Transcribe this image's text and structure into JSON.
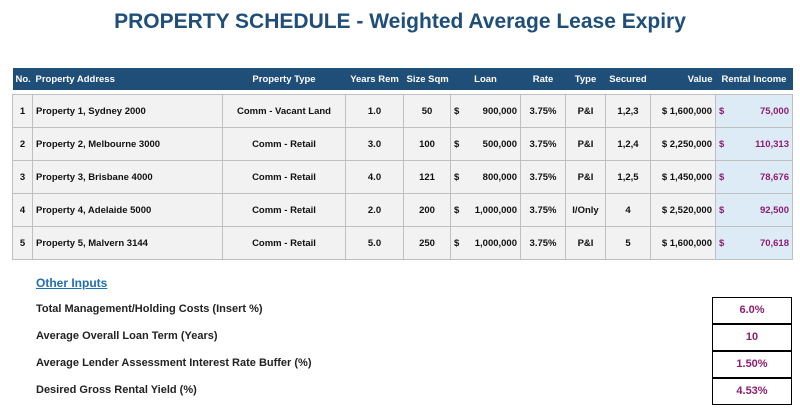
{
  "title": "PROPERTY SCHEDULE - Weighted Average Lease Expiry",
  "table": {
    "headers": [
      "No.",
      "Property Address",
      "Property Type",
      "Years Rem",
      "Size Sqm",
      "Loan",
      "Rate",
      "Type",
      "Secured",
      "Value",
      "Rental Income"
    ],
    "rows": [
      [
        "1",
        "Property 1, Sydney 2000",
        "Comm - Vacant Land",
        "1.0",
        "50",
        {
          "currency": "$",
          "amount": "900,000"
        },
        "3.75%",
        "P&I",
        "1,2,3",
        "$ 1,600,000",
        {
          "currency": "$",
          "amount": "75,000"
        }
      ],
      [
        "2",
        "Property 2, Melbourne 3000",
        "Comm - Retail",
        "3.0",
        "100",
        {
          "currency": "$",
          "amount": "500,000"
        },
        "3.75%",
        "P&I",
        "1,2,4",
        "$ 2,250,000",
        {
          "currency": "$",
          "amount": "110,313"
        }
      ],
      [
        "3",
        "Property 3, Brisbane 4000",
        "Comm - Retail",
        "4.0",
        "121",
        {
          "currency": "$",
          "amount": "800,000"
        },
        "3.75%",
        "P&I",
        "1,2,5",
        "$ 1,450,000",
        {
          "currency": "$",
          "amount": "78,676"
        }
      ],
      [
        "4",
        "Property 4, Adelaide 5000",
        "Comm - Retail",
        "2.0",
        "200",
        {
          "currency": "$",
          "amount": "1,000,000"
        },
        "3.75%",
        "I/Only",
        "4",
        "$ 2,520,000",
        {
          "currency": "$",
          "amount": "92,500"
        }
      ],
      [
        "5",
        "Property 5, Malvern 3144",
        "Comm - Retail",
        "5.0",
        "250",
        {
          "currency": "$",
          "amount": "1,000,000"
        },
        "3.75%",
        "P&I",
        "5",
        "$ 1,600,000",
        {
          "currency": "$",
          "amount": "70,618"
        }
      ]
    ]
  },
  "other_inputs": {
    "heading": "Other Inputs",
    "items": [
      {
        "label": "Total Management/Holding Costs (Insert %)",
        "value": "6.0%"
      },
      {
        "label": "Average Overall Loan Term (Years)",
        "value": "10"
      },
      {
        "label": "Average Lender Assessment Interest Rate Buffer (%)",
        "value": "1.50%"
      },
      {
        "label": "Desired Gross Rental Yield (%)",
        "value": "4.53%"
      }
    ]
  }
}
